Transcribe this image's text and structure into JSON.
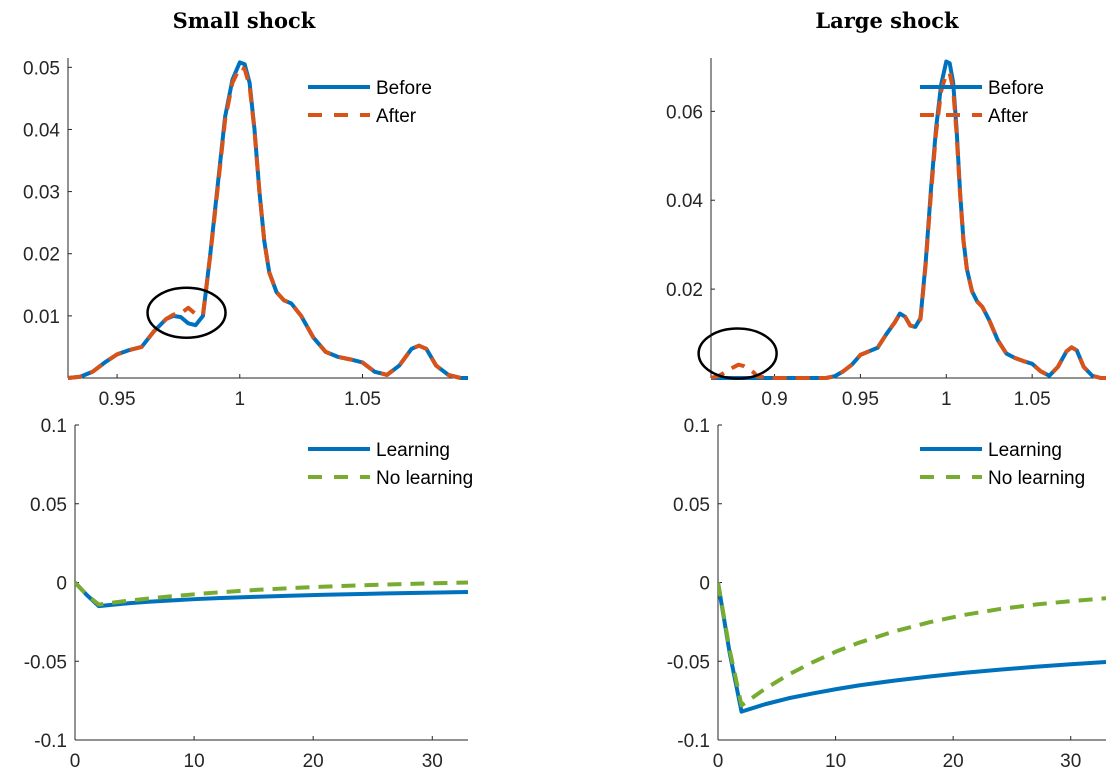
{
  "colors": {
    "before": "#0072BD",
    "after": "#D95319",
    "learning": "#0072BD",
    "no_learning": "#77AC30",
    "axis": "#262626"
  },
  "chart_data": [
    {
      "panel": "top-left",
      "type": "line",
      "title": "Small shock",
      "xlabel": "",
      "ylabel": "",
      "xlim": [
        0.93,
        1.093
      ],
      "ylim": [
        0,
        0.0515
      ],
      "xticks": [
        0.95,
        1,
        1.05
      ],
      "xtick_labels": [
        "0.95",
        "1",
        "1.05"
      ],
      "yticks": [
        0.01,
        0.02,
        0.03,
        0.04,
        0.05
      ],
      "ytick_labels": [
        "0.01",
        "0.02",
        "0.03",
        "0.04",
        "0.05"
      ],
      "legend": "top-right",
      "annotation": "circle",
      "annotation_center": [
        0.9783,
        0.0105
      ],
      "series": [
        {
          "name": "Before",
          "style": "solid",
          "color_key": "before",
          "x": [
            0.93,
            0.935,
            0.94,
            0.945,
            0.95,
            0.955,
            0.96,
            0.965,
            0.97,
            0.973,
            0.976,
            0.979,
            0.982,
            0.985,
            0.988,
            0.991,
            0.994,
            0.997,
            1.0,
            1.002,
            1.004,
            1.006,
            1.008,
            1.01,
            1.012,
            1.015,
            1.018,
            1.021,
            1.025,
            1.03,
            1.035,
            1.04,
            1.045,
            1.05,
            1.055,
            1.06,
            1.065,
            1.07,
            1.073,
            1.076,
            1.08,
            1.085,
            1.09,
            1.093
          ],
          "y": [
            0.0,
            0.0002,
            0.001,
            0.0025,
            0.0038,
            0.0045,
            0.005,
            0.0075,
            0.0095,
            0.01,
            0.0098,
            0.0088,
            0.0085,
            0.01,
            0.02,
            0.031,
            0.042,
            0.048,
            0.0508,
            0.0505,
            0.0475,
            0.04,
            0.03,
            0.022,
            0.017,
            0.0138,
            0.0125,
            0.012,
            0.01,
            0.0065,
            0.0042,
            0.0034,
            0.003,
            0.0025,
            0.001,
            0.0005,
            0.002,
            0.0047,
            0.0052,
            0.0047,
            0.002,
            0.0005,
            0.0,
            0.0
          ]
        },
        {
          "name": "After",
          "style": "dashed",
          "color_key": "after",
          "x": [
            0.93,
            0.935,
            0.94,
            0.945,
            0.95,
            0.955,
            0.96,
            0.965,
            0.97,
            0.973,
            0.976,
            0.979,
            0.982,
            0.985,
            0.988,
            0.991,
            0.994,
            0.997,
            1.0,
            1.002,
            1.004,
            1.006,
            1.008,
            1.01,
            1.012,
            1.015,
            1.018,
            1.021,
            1.025,
            1.03,
            1.035,
            1.04,
            1.045,
            1.05,
            1.055,
            1.06,
            1.065,
            1.07,
            1.073,
            1.076,
            1.08,
            1.085,
            1.09,
            1.093
          ],
          "y": [
            0.0,
            0.0002,
            0.001,
            0.0025,
            0.0038,
            0.0045,
            0.005,
            0.0075,
            0.0095,
            0.0102,
            0.0104,
            0.0113,
            0.0103,
            0.0102,
            0.0198,
            0.0305,
            0.0415,
            0.0475,
            0.05,
            0.0497,
            0.047,
            0.0398,
            0.03,
            0.022,
            0.017,
            0.0138,
            0.0125,
            0.012,
            0.01,
            0.0065,
            0.0042,
            0.0034,
            0.003,
            0.0025,
            0.001,
            0.0005,
            0.002,
            0.0047,
            0.0052,
            0.0047,
            0.002,
            0.0005,
            0.0,
            0.0
          ]
        }
      ]
    },
    {
      "panel": "top-right",
      "type": "line",
      "title": "Large shock",
      "xlabel": "",
      "ylabel": "",
      "xlim": [
        0.863,
        1.093
      ],
      "ylim": [
        0,
        0.072
      ],
      "xticks": [
        0.9,
        0.95,
        1,
        1.05
      ],
      "xtick_labels": [
        "0.9",
        "0.95",
        "1",
        "1.05"
      ],
      "yticks": [
        0.02,
        0.04,
        0.06
      ],
      "ytick_labels": [
        "0.02",
        "0.04",
        "0.06"
      ],
      "legend": "top-right",
      "annotation": "circle",
      "annotation_center": [
        0.8785,
        0.0055
      ],
      "series": [
        {
          "name": "Before",
          "style": "solid",
          "color_key": "before",
          "x": [
            0.863,
            0.87,
            0.88,
            0.9,
            0.92,
            0.93,
            0.935,
            0.94,
            0.945,
            0.95,
            0.955,
            0.96,
            0.965,
            0.97,
            0.973,
            0.976,
            0.979,
            0.982,
            0.985,
            0.988,
            0.991,
            0.994,
            0.997,
            1.0,
            1.002,
            1.004,
            1.006,
            1.008,
            1.01,
            1.012,
            1.015,
            1.018,
            1.021,
            1.025,
            1.03,
            1.035,
            1.04,
            1.045,
            1.05,
            1.055,
            1.06,
            1.065,
            1.07,
            1.073,
            1.076,
            1.08,
            1.085,
            1.09,
            1.093
          ],
          "y": [
            0.0,
            0.0,
            0.0,
            0.0,
            0.0,
            0.0,
            0.0004,
            0.0015,
            0.003,
            0.0052,
            0.006,
            0.0068,
            0.0098,
            0.0125,
            0.0145,
            0.0138,
            0.0118,
            0.0115,
            0.0135,
            0.026,
            0.042,
            0.056,
            0.066,
            0.0712,
            0.0708,
            0.0665,
            0.056,
            0.042,
            0.031,
            0.0245,
            0.0195,
            0.0172,
            0.016,
            0.013,
            0.0085,
            0.0055,
            0.0045,
            0.0038,
            0.0032,
            0.0015,
            0.0005,
            0.0025,
            0.006,
            0.0069,
            0.0062,
            0.0025,
            0.0005,
            0.0,
            0.0
          ]
        },
        {
          "name": "After",
          "style": "dashed",
          "color_key": "after",
          "x": [
            0.863,
            0.867,
            0.87,
            0.873,
            0.876,
            0.879,
            0.882,
            0.885,
            0.888,
            0.89,
            0.9,
            0.92,
            0.93,
            0.935,
            0.94,
            0.945,
            0.95,
            0.955,
            0.96,
            0.965,
            0.97,
            0.973,
            0.976,
            0.979,
            0.982,
            0.985,
            0.988,
            0.991,
            0.994,
            0.997,
            1.0,
            1.002,
            1.004,
            1.006,
            1.008,
            1.01,
            1.012,
            1.015,
            1.018,
            1.021,
            1.025,
            1.03,
            1.035,
            1.04,
            1.045,
            1.05,
            1.055,
            1.06,
            1.065,
            1.07,
            1.073,
            1.076,
            1.08,
            1.085,
            1.09,
            1.093
          ],
          "y": [
            0.0,
            0.0004,
            0.001,
            0.0017,
            0.0024,
            0.003,
            0.0027,
            0.002,
            0.0012,
            0.0003,
            0.0,
            0.0,
            0.0,
            0.0004,
            0.0015,
            0.003,
            0.0052,
            0.006,
            0.0068,
            0.0098,
            0.0125,
            0.0145,
            0.0138,
            0.0118,
            0.0115,
            0.0133,
            0.0255,
            0.041,
            0.055,
            0.0645,
            0.0685,
            0.0685,
            0.065,
            0.055,
            0.0415,
            0.0308,
            0.0245,
            0.0195,
            0.0172,
            0.016,
            0.013,
            0.0085,
            0.0055,
            0.0045,
            0.0038,
            0.0032,
            0.0015,
            0.0005,
            0.0025,
            0.006,
            0.0069,
            0.0062,
            0.0025,
            0.0005,
            0.0,
            0.0
          ]
        }
      ]
    },
    {
      "panel": "bottom-left",
      "type": "line",
      "title": "",
      "xlabel": "",
      "ylabel": "",
      "xlim": [
        0,
        33
      ],
      "ylim": [
        -0.1,
        0.1
      ],
      "xticks": [
        0,
        10,
        20,
        30
      ],
      "xtick_labels": [
        "0",
        "10",
        "20",
        "30"
      ],
      "yticks": [
        -0.1,
        -0.05,
        0,
        0.05,
        0.1
      ],
      "ytick_labels": [
        "-0.1",
        "-0.05",
        "0",
        "0.05",
        "0.1"
      ],
      "legend": "top-right",
      "series": [
        {
          "name": "Learning",
          "style": "solid",
          "color_key": "learning",
          "x": [
            0,
            1,
            2,
            4,
            6,
            8,
            10,
            12,
            15,
            18,
            21,
            24,
            27,
            30,
            33
          ],
          "y": [
            0,
            -0.008,
            -0.015,
            -0.0135,
            -0.0123,
            -0.0114,
            -0.0106,
            -0.0099,
            -0.0091,
            -0.0084,
            -0.0078,
            -0.0073,
            -0.0068,
            -0.0064,
            -0.006
          ]
        },
        {
          "name": "No learning",
          "style": "dashed",
          "color_key": "no_learning",
          "x": [
            0,
            1,
            2,
            4,
            6,
            8,
            10,
            12,
            15,
            18,
            21,
            24,
            27,
            30,
            33
          ],
          "y": [
            0,
            -0.008,
            -0.014,
            -0.012,
            -0.0103,
            -0.0088,
            -0.0075,
            -0.0063,
            -0.0048,
            -0.0036,
            -0.0026,
            -0.0018,
            -0.0011,
            -0.0005,
            0.0
          ]
        }
      ]
    },
    {
      "panel": "bottom-right",
      "type": "line",
      "title": "",
      "xlabel": "",
      "ylabel": "",
      "xlim": [
        0,
        33
      ],
      "ylim": [
        -0.1,
        0.1
      ],
      "xticks": [
        0,
        10,
        20,
        30
      ],
      "xtick_labels": [
        "0",
        "10",
        "20",
        "30"
      ],
      "yticks": [
        -0.1,
        -0.05,
        0,
        0.05,
        0.1
      ],
      "ytick_labels": [
        "-0.1",
        "-0.05",
        "0",
        "0.05",
        "0.1"
      ],
      "legend": "top-right",
      "series": [
        {
          "name": "Learning",
          "style": "solid",
          "color_key": "learning",
          "x": [
            0,
            1,
            2,
            4,
            6,
            8,
            10,
            12,
            15,
            18,
            21,
            24,
            27,
            30,
            33
          ],
          "y": [
            0,
            -0.045,
            -0.082,
            -0.0773,
            -0.0735,
            -0.0705,
            -0.0678,
            -0.0653,
            -0.0623,
            -0.0597,
            -0.0573,
            -0.0553,
            -0.0535,
            -0.0519,
            -0.0505
          ]
        },
        {
          "name": "No learning",
          "style": "dashed",
          "color_key": "no_learning",
          "x": [
            0,
            1,
            2,
            4,
            6,
            8,
            10,
            12,
            15,
            18,
            21,
            24,
            27,
            30,
            33
          ],
          "y": [
            0,
            -0.043,
            -0.078,
            -0.0675,
            -0.0585,
            -0.0508,
            -0.044,
            -0.0382,
            -0.031,
            -0.0252,
            -0.0205,
            -0.0168,
            -0.014,
            -0.0118,
            -0.01
          ]
        }
      ]
    }
  ]
}
